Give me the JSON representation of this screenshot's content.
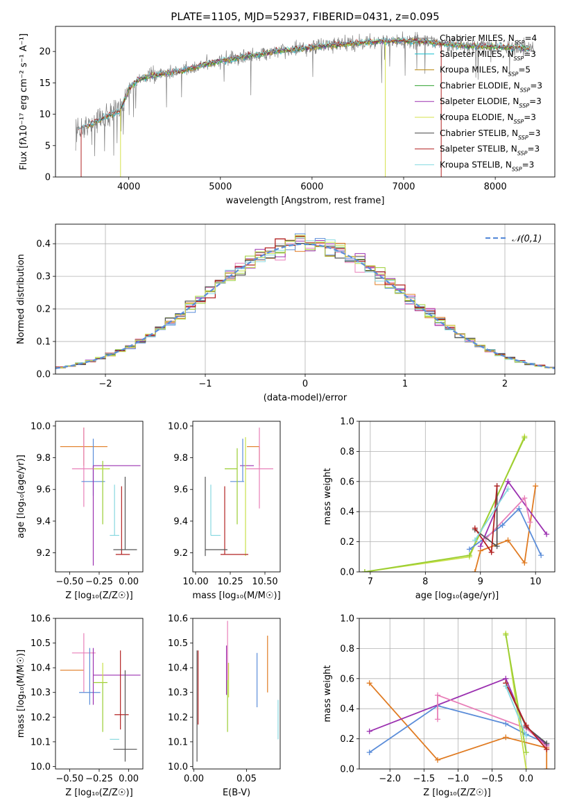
{
  "figure_title": "PLATE=1105, MJD=52937, FIBERID=0431, z=0.095",
  "colors": {
    "Chabrier MILES": "#7f7f7f",
    "Salpeter MILES": "#17becf",
    "Kroupa MILES": "#b8860b",
    "Chabrier ELODIE": "#2ca02c",
    "Salpeter ELODIE": "#9b30b0",
    "Kroupa ELODIE": "#d4e04a",
    "Chabrier STELIB": "#444444",
    "Salpeter STELIB": "#b22222",
    "Kroupa STELIB": "#80d8e0",
    "orange": "#e07b22",
    "blue": "#5b8dd9",
    "pink": "#e87fb8",
    "purple": "#9b30b0",
    "olive": "#9acd32",
    "dkgray": "#555555",
    "red": "#b22222",
    "cyan": "#87d8e0",
    "ygreen": "#c8e04a",
    "normal_curve": "#5b8dd9"
  },
  "chart_data": [
    {
      "id": "spectrum",
      "type": "line",
      "xlabel": "wavelength [Angstrom, rest frame]",
      "ylabel": "Flux [fλ10⁻¹⁷ erg cm⁻² s⁻¹ A⁻¹]",
      "xlim": [
        3200,
        8650
      ],
      "ylim": [
        0,
        24
      ],
      "xticks": [
        4000,
        5000,
        6000,
        7000,
        8000
      ],
      "yticks": [
        0,
        5,
        10,
        15,
        20
      ],
      "grid": false,
      "legend_position": "right",
      "legend": [
        "Chabrier MILES, NSSP=4",
        "Salpeter MILES, NSSP=3",
        "Kroupa MILES, NSSP=5",
        "Chabrier ELODIE, NSSP=3",
        "Salpeter ELODIE, NSSP=3",
        "Kroupa ELODIE, NSSP=3",
        "Chabrier STELIB, NSSP=3",
        "Salpeter STELIB, NSSP=3",
        "Kroupa STELIB, NSSP=3"
      ],
      "continuum": {
        "x": [
          3450,
          3600,
          3800,
          3900,
          4000,
          4100,
          4200,
          4400,
          4600,
          4800,
          5000,
          5200,
          5400,
          5600,
          5800,
          6000,
          6200,
          6400,
          6600,
          6800,
          7000,
          7200,
          7400,
          7600,
          7800,
          8000,
          8200,
          8400
        ],
        "y": [
          7.5,
          8.5,
          10.0,
          10.5,
          14.0,
          15.5,
          16.0,
          16.5,
          17.0,
          17.8,
          18.5,
          19.0,
          19.5,
          20.0,
          20.3,
          20.7,
          21.0,
          21.2,
          21.5,
          21.6,
          21.7,
          21.6,
          21.3,
          21.0,
          20.8,
          20.8,
          20.6,
          20.4
        ]
      },
      "spikes": [
        {
          "x": 3480,
          "ymin": 0,
          "series": "Salpeter STELIB"
        },
        {
          "x": 3910,
          "ymin": 0,
          "series": "Kroupa ELODIE"
        },
        {
          "x": 6800,
          "ymin": 0,
          "series": "Kroupa ELODIE"
        },
        {
          "x": 7410,
          "ymin": 0,
          "series": "Salpeter STELIB"
        }
      ]
    },
    {
      "id": "residual_histogram",
      "type": "line",
      "xlabel": "(data-model)/error",
      "ylabel": "Normed distribution",
      "xlim": [
        -2.5,
        2.5
      ],
      "ylim": [
        0,
        0.46
      ],
      "xticks": [
        -2,
        -1,
        0,
        1,
        2
      ],
      "yticks": [
        0.0,
        0.1,
        0.2,
        0.3,
        0.4
      ],
      "grid": true,
      "legend_position": "upper right",
      "legend": [
        "𝒩(0,1)"
      ],
      "bin_width": 0.1
    },
    {
      "id": "age_vs_Z",
      "type": "scatter",
      "xlabel": "Z [log₁₀(Z/Z☉)]",
      "ylabel": "age  [log₁₀(age/yr)]",
      "xlim": [
        -0.62,
        0.12
      ],
      "ylim": [
        9.08,
        10.03
      ],
      "xticks": [
        -0.5,
        -0.25,
        0.0
      ],
      "xtick_labels": [
        "−0.50",
        "−0.25",
        "0.00"
      ],
      "yticks": [
        9.2,
        9.4,
        9.6,
        9.8,
        10.0
      ],
      "grid": false,
      "points": [
        {
          "x": -0.38,
          "xerr": [
            0.2,
            0.2
          ],
          "y": 9.87,
          "yerr": [
            0.12,
            0.12
          ],
          "color": "orange"
        },
        {
          "x": -0.38,
          "xerr": [
            0.1,
            0.1
          ],
          "y": 9.73,
          "yerr": [
            0.24,
            0.26
          ],
          "color": "pink"
        },
        {
          "x": -0.3,
          "xerr": [
            0.1,
            0.1
          ],
          "y": 9.65,
          "yerr": [
            0.09,
            0.27
          ],
          "color": "blue"
        },
        {
          "x": -0.3,
          "xerr": [
            0.0,
            0.4
          ],
          "y": 9.75,
          "yerr": [
            0.63,
            0.0
          ],
          "color": "purple"
        },
        {
          "x": -0.22,
          "xerr": [
            0.06,
            0.06
          ],
          "y": 9.73,
          "yerr": [
            0.35,
            0.05
          ],
          "color": "olive"
        },
        {
          "x": -0.22,
          "xerr": [
            0.08,
            0.05
          ],
          "y": 9.73,
          "yerr": [
            0.0,
            0.0
          ],
          "color": "ygreen"
        },
        {
          "x": -0.12,
          "xerr": [
            0.04,
            0.04
          ],
          "y": 9.31,
          "yerr": [
            0.0,
            0.32
          ],
          "color": "cyan"
        },
        {
          "x": -0.06,
          "xerr": [
            0.0,
            0.0
          ],
          "y": 9.19,
          "yerr": [
            0.0,
            0.43
          ],
          "color": "red"
        },
        {
          "x": -0.05,
          "xerr": [
            0.06,
            0.06
          ],
          "y": 9.19,
          "yerr": [
            0.0,
            0.0
          ],
          "color": "red"
        },
        {
          "x": -0.03,
          "xerr": [
            0.1,
            0.1
          ],
          "y": 9.22,
          "yerr": [
            0.0,
            0.46
          ],
          "color": "dkgray"
        }
      ]
    },
    {
      "id": "age_vs_mass",
      "type": "scatter",
      "xlabel": "mass [log₁₀(M/M☉)]",
      "ylabel": "",
      "xlim": [
        9.98,
        10.61
      ],
      "ylim": [
        9.08,
        10.03
      ],
      "xticks": [
        10.0,
        10.25,
        10.5
      ],
      "xtick_labels": [
        "10.00",
        "10.25",
        "10.50"
      ],
      "yticks": [
        9.2,
        9.4,
        9.6,
        9.8,
        10.0
      ],
      "grid": false,
      "points": [
        {
          "x": 10.46,
          "xerr": [
            0.09,
            0.0
          ],
          "y": 9.87,
          "yerr": [
            0.12,
            0.0
          ],
          "color": "orange"
        },
        {
          "x": 10.46,
          "xerr": [
            0.1,
            0.1
          ],
          "y": 9.73,
          "yerr": [
            0.25,
            0.26
          ],
          "color": "pink"
        },
        {
          "x": 10.37,
          "xerr": [
            0.05,
            0.05
          ],
          "y": 9.75,
          "yerr": [
            0.0,
            0.0
          ],
          "color": "purple"
        },
        {
          "x": 10.34,
          "xerr": [
            0.0,
            0.0
          ],
          "y": 9.65,
          "yerr": [
            0.0,
            0.27
          ],
          "color": "blue"
        },
        {
          "x": 10.3,
          "xerr": [
            0.05,
            0.05
          ],
          "y": 9.65,
          "yerr": [
            0.0,
            0.0
          ],
          "color": "blue"
        },
        {
          "x": 10.3,
          "xerr": [
            0.09,
            0.0
          ],
          "y": 9.73,
          "yerr": [
            0.35,
            0.13
          ],
          "color": "olive"
        },
        {
          "x": 10.36,
          "xerr": [
            0.0,
            0.0
          ],
          "y": 9.45,
          "yerr": [
            0.27,
            0.48
          ],
          "color": "ygreen"
        },
        {
          "x": 10.11,
          "xerr": [
            0.0,
            0.07
          ],
          "y": 9.31,
          "yerr": [
            0.0,
            0.32
          ],
          "color": "cyan"
        },
        {
          "x": 10.21,
          "xerr": [
            0.0,
            0.0
          ],
          "y": 9.19,
          "yerr": [
            0.0,
            0.43
          ],
          "color": "red"
        },
        {
          "x": 10.25,
          "xerr": [
            0.07,
            0.13
          ],
          "y": 9.19,
          "yerr": [
            0.0,
            0.0
          ],
          "color": "red"
        },
        {
          "x": 10.07,
          "xerr": [
            0.0,
            0.16
          ],
          "y": 9.22,
          "yerr": [
            0.04,
            0.46
          ],
          "color": "dkgray"
        }
      ]
    },
    {
      "id": "mass_weight_vs_age",
      "type": "line",
      "xlabel": "age  [log₁₀(age/yr)]",
      "ylabel": "mass weight",
      "xlim": [
        6.8,
        10.35
      ],
      "ylim": [
        0.0,
        1.0
      ],
      "xticks": [
        7,
        8,
        9,
        10
      ],
      "yticks": [
        0.0,
        0.2,
        0.4,
        0.6,
        0.8,
        1.0
      ],
      "grid": true,
      "series": [
        {
          "color": "ygreen",
          "x": [
            6.9,
            8.8,
            9.8
          ],
          "y": [
            0.0,
            0.1,
            0.9
          ]
        },
        {
          "color": "olive",
          "x": [
            6.9,
            8.8,
            9.8
          ],
          "y": [
            0.0,
            0.11,
            0.89
          ]
        },
        {
          "color": "orange",
          "x": [
            8.9,
            9.0,
            9.5,
            9.8,
            10.0
          ],
          "y": [
            0.0,
            0.14,
            0.21,
            0.06,
            0.57
          ]
        },
        {
          "color": "blue",
          "x": [
            8.8,
            9.4,
            9.7,
            10.1
          ],
          "y": [
            0.15,
            0.31,
            0.42,
            0.11
          ]
        },
        {
          "color": "purple",
          "x": [
            9.0,
            9.5,
            10.2
          ],
          "y": [
            0.17,
            0.6,
            0.25
          ]
        },
        {
          "color": "pink",
          "x": [
            9.1,
            9.8,
            9.9
          ],
          "y": [
            0.22,
            0.49,
            0.33
          ]
        },
        {
          "color": "dkgray",
          "x": [
            8.9,
            9.3,
            9.3
          ],
          "y": [
            0.28,
            0.17,
            0.57
          ]
        },
        {
          "color": "red",
          "x": [
            8.9,
            9.2,
            9.3
          ],
          "y": [
            0.29,
            0.13,
            0.57
          ]
        },
        {
          "color": "cyan",
          "x": [
            8.9,
            9.5
          ],
          "y": [
            0.21,
            0.55
          ]
        }
      ]
    },
    {
      "id": "mass_vs_Z",
      "type": "scatter",
      "xlabel": "Z [log₁₀(Z/Z☉)]",
      "ylabel": "mass [log₁₀(M/M☉)]",
      "xlim": [
        -0.62,
        0.12
      ],
      "ylim": [
        9.99,
        10.6
      ],
      "xticks": [
        -0.5,
        -0.25,
        0.0
      ],
      "xtick_labels": [
        "−0.50",
        "−0.25",
        "0.00"
      ],
      "yticks": [
        10.0,
        10.1,
        10.2,
        10.3,
        10.4,
        10.5,
        10.6
      ],
      "grid": false,
      "points": [
        {
          "x": -0.38,
          "xerr": [
            0.2,
            0.0
          ],
          "y": 10.39,
          "yerr": [
            0.0,
            0.0
          ],
          "color": "orange"
        },
        {
          "x": -0.38,
          "xerr": [
            0.1,
            0.1
          ],
          "y": 10.46,
          "yerr": [
            0.16,
            0.08
          ],
          "color": "pink"
        },
        {
          "x": -0.33,
          "xerr": [
            0.09,
            0.09
          ],
          "y": 10.3,
          "yerr": [
            0.05,
            0.18
          ],
          "color": "blue"
        },
        {
          "x": -0.3,
          "xerr": [
            0.0,
            0.4
          ],
          "y": 10.37,
          "yerr": [
            0.12,
            0.11
          ],
          "color": "purple"
        },
        {
          "x": -0.22,
          "xerr": [
            0.08,
            0.04
          ],
          "y": 10.34,
          "yerr": [
            0.2,
            0.03
          ],
          "color": "olive"
        },
        {
          "x": -0.22,
          "xerr": [
            0.0,
            0.0
          ],
          "y": 10.34,
          "yerr": [
            0.0,
            0.08
          ],
          "color": "ygreen"
        },
        {
          "x": -0.12,
          "xerr": [
            0.04,
            0.04
          ],
          "y": 10.11,
          "yerr": [
            0.0,
            0.0
          ],
          "color": "cyan"
        },
        {
          "x": -0.06,
          "xerr": [
            0.06,
            0.06
          ],
          "y": 10.21,
          "yerr": [
            0.0,
            0.0
          ],
          "color": "red"
        },
        {
          "x": -0.07,
          "xerr": [
            0.0,
            0.0
          ],
          "y": 10.21,
          "yerr": [
            0.06,
            0.26
          ],
          "color": "red"
        },
        {
          "x": -0.03,
          "xerr": [
            0.1,
            0.1
          ],
          "y": 10.07,
          "yerr": [
            0.05,
            0.32
          ],
          "color": "dkgray"
        }
      ]
    },
    {
      "id": "mass_vs_EBV",
      "type": "scatter",
      "xlabel": "E(B-V)",
      "ylabel": "",
      "xlim": [
        -0.001,
        0.082
      ],
      "ylim": [
        9.99,
        10.6
      ],
      "xticks": [
        0.0,
        0.05
      ],
      "xtick_labels": [
        "0.00",
        "0.05"
      ],
      "yticks": [
        10.0,
        10.1,
        10.2,
        10.3,
        10.4,
        10.5,
        10.6
      ],
      "grid": false,
      "points": [
        {
          "x": 0.003,
          "y": 10.28,
          "yerr": [
            0.26,
            0.19
          ],
          "color": "dkgray"
        },
        {
          "x": 0.004,
          "y": 10.32,
          "yerr": [
            0.15,
            0.15
          ],
          "color": "red"
        },
        {
          "x": 0.031,
          "y": 10.39,
          "yerr": [
            0.1,
            0.1
          ],
          "color": "purple"
        },
        {
          "x": 0.032,
          "y": 10.28,
          "yerr": [
            0.14,
            0.14
          ],
          "color": "olive"
        },
        {
          "x": 0.032,
          "y": 10.45,
          "yerr": [
            0.1,
            0.14
          ],
          "color": "pink"
        },
        {
          "x": 0.033,
          "y": 10.28,
          "yerr": [
            0.0,
            0.14
          ],
          "color": "ygreen"
        },
        {
          "x": 0.06,
          "y": 10.35,
          "yerr": [
            0.11,
            0.11
          ],
          "color": "blue"
        },
        {
          "x": 0.07,
          "y": 10.39,
          "yerr": [
            0.09,
            0.14
          ],
          "color": "orange"
        },
        {
          "x": 0.08,
          "y": 10.19,
          "yerr": [
            0.08,
            0.08
          ],
          "color": "cyan"
        }
      ]
    },
    {
      "id": "mass_weight_vs_Z",
      "type": "line",
      "xlabel": "Z [log₁₀(Z/Z☉)]",
      "ylabel": "mass weight",
      "xlim": [
        -2.45,
        0.42
      ],
      "ylim": [
        0.0,
        1.0
      ],
      "xticks": [
        -2.0,
        -1.5,
        -1.0,
        -0.5,
        0.0
      ],
      "xtick_labels": [
        "−2.0",
        "−1.5",
        "−1.0",
        "−0.5",
        "0.0"
      ],
      "yticks": [
        0.0,
        0.2,
        0.4,
        0.6,
        0.8,
        1.0
      ],
      "grid": true,
      "series": [
        {
          "color": "orange",
          "x": [
            -2.3,
            -1.3,
            -0.3,
            0.3,
            0.3
          ],
          "y": [
            0.57,
            0.06,
            0.21,
            0.14,
            0.0
          ]
        },
        {
          "color": "blue",
          "x": [
            -2.3,
            -1.3,
            -0.3,
            0.0,
            0.3
          ],
          "y": [
            0.11,
            0.42,
            0.3,
            0.23,
            0.17
          ]
        },
        {
          "color": "purple",
          "x": [
            -2.3,
            -0.3,
            0.0,
            0.3
          ],
          "y": [
            0.25,
            0.6,
            0.28,
            0.16
          ]
        },
        {
          "color": "pink",
          "x": [
            -1.3,
            -1.3,
            0.0,
            0.3
          ],
          "y": [
            0.33,
            0.49,
            0.27,
            0.15
          ]
        },
        {
          "color": "ygreen",
          "x": [
            -0.3,
            0.0
          ],
          "y": [
            0.9,
            0.0
          ]
        },
        {
          "color": "olive",
          "x": [
            -0.3,
            0.0
          ],
          "y": [
            0.89,
            0.11
          ]
        },
        {
          "color": "dkgray",
          "x": [
            -0.3,
            0.0,
            0.3
          ],
          "y": [
            0.57,
            0.28,
            0.17
          ]
        },
        {
          "color": "red",
          "x": [
            -0.3,
            0.0,
            0.3
          ],
          "y": [
            0.57,
            0.29,
            0.13
          ]
        },
        {
          "color": "cyan",
          "x": [
            -0.3,
            0.0
          ],
          "y": [
            0.55,
            0.22
          ]
        }
      ]
    }
  ]
}
